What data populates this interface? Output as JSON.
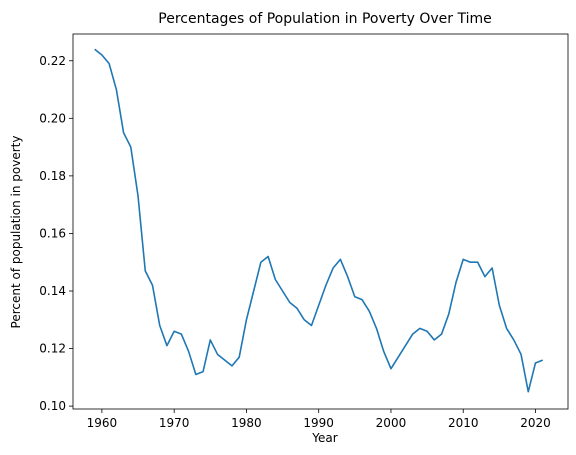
{
  "chart_data": {
    "type": "line",
    "title": "Percentages of Population in Poverty Over Time",
    "xlabel": "Year",
    "ylabel": "Percent of population in poverty",
    "xlim": [
      1956,
      2024.5
    ],
    "ylim": [
      0.099,
      0.2293
    ],
    "x_ticks": [
      1960,
      1970,
      1980,
      1990,
      2000,
      2010,
      2020
    ],
    "y_ticks": [
      0.1,
      0.12,
      0.14,
      0.16,
      0.18,
      0.2,
      0.22
    ],
    "y_tick_labels": [
      "0.10",
      "0.12",
      "0.14",
      "0.16",
      "0.18",
      "0.20",
      "0.22"
    ],
    "grid": false,
    "series": [
      {
        "color": "#1f77b4",
        "x": [
          1959,
          1960,
          1961,
          1962,
          1963,
          1964,
          1965,
          1966,
          1967,
          1968,
          1969,
          1970,
          1971,
          1972,
          1973,
          1974,
          1975,
          1976,
          1977,
          1978,
          1979,
          1980,
          1981,
          1982,
          1983,
          1984,
          1985,
          1986,
          1987,
          1988,
          1989,
          1990,
          1991,
          1992,
          1993,
          1994,
          1995,
          1996,
          1997,
          1998,
          1999,
          2000,
          2001,
          2002,
          2003,
          2004,
          2005,
          2006,
          2007,
          2008,
          2009,
          2010,
          2011,
          2012,
          2013,
          2014,
          2015,
          2016,
          2017,
          2018,
          2019,
          2020,
          2021
        ],
        "y": [
          0.224,
          0.222,
          0.219,
          0.21,
          0.195,
          0.19,
          0.173,
          0.147,
          0.142,
          0.128,
          0.121,
          0.126,
          0.125,
          0.119,
          0.111,
          0.112,
          0.123,
          0.118,
          0.116,
          0.114,
          0.117,
          0.13,
          0.14,
          0.15,
          0.152,
          0.144,
          0.14,
          0.136,
          0.134,
          0.13,
          0.128,
          0.135,
          0.142,
          0.148,
          0.151,
          0.145,
          0.138,
          0.137,
          0.133,
          0.127,
          0.119,
          0.113,
          0.117,
          0.121,
          0.125,
          0.127,
          0.126,
          0.123,
          0.125,
          0.132,
          0.143,
          0.151,
          0.15,
          0.15,
          0.145,
          0.148,
          0.135,
          0.127,
          0.123,
          0.118,
          0.105,
          0.115,
          0.116
        ]
      }
    ]
  }
}
